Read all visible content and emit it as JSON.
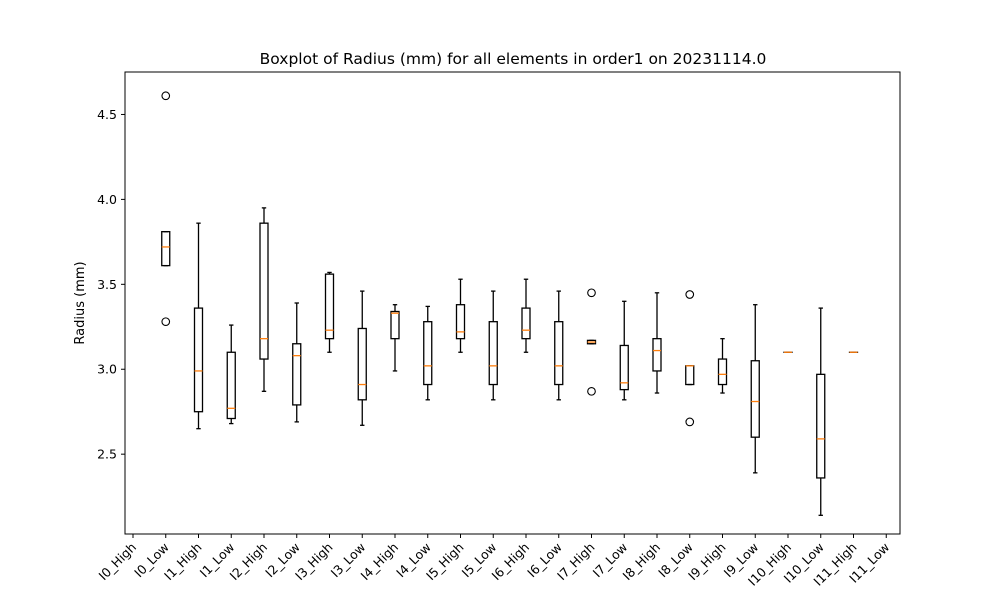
{
  "chart_data": {
    "type": "box",
    "title": "Boxplot of Radius (mm) for all elements in order1 on 20231114.0",
    "xlabel": "",
    "ylabel": "Radius (mm)",
    "ylim": [
      2.03,
      4.75
    ],
    "yticks": [
      2.5,
      3.0,
      3.5,
      4.0,
      4.5
    ],
    "ytick_labels": [
      "2.5",
      "3.0",
      "3.5",
      "4.0",
      "4.5"
    ],
    "grid": false,
    "categories": [
      "I0_High",
      "I0_Low",
      "I1_High",
      "I1_Low",
      "I2_High",
      "I2_Low",
      "I3_High",
      "I3_Low",
      "I4_High",
      "I4_Low",
      "I5_High",
      "I5_Low",
      "I6_High",
      "I6_Low",
      "I7_High",
      "I7_Low",
      "I8_High",
      "I8_Low",
      "I9_High",
      "I9_Low",
      "I10_High",
      "I10_Low",
      "I11_High",
      "I11_Low"
    ],
    "boxes": [
      null,
      {
        "whislo": 3.61,
        "q1": 3.61,
        "med": 3.72,
        "q3": 3.81,
        "whishi": 3.81,
        "fliers": [
          4.61,
          3.28
        ]
      },
      {
        "whislo": 2.65,
        "q1": 2.75,
        "med": 2.99,
        "q3": 3.36,
        "whishi": 3.86,
        "fliers": []
      },
      {
        "whislo": 2.68,
        "q1": 2.71,
        "med": 2.77,
        "q3": 3.1,
        "whishi": 3.26,
        "fliers": []
      },
      {
        "whislo": 2.87,
        "q1": 3.06,
        "med": 3.18,
        "q3": 3.86,
        "whishi": 3.95,
        "fliers": []
      },
      {
        "whislo": 2.69,
        "q1": 2.79,
        "med": 3.08,
        "q3": 3.15,
        "whishi": 3.39,
        "fliers": []
      },
      {
        "whislo": 3.1,
        "q1": 3.18,
        "med": 3.23,
        "q3": 3.56,
        "whishi": 3.57,
        "fliers": []
      },
      {
        "whislo": 2.67,
        "q1": 2.82,
        "med": 2.91,
        "q3": 3.24,
        "whishi": 3.46,
        "fliers": []
      },
      {
        "whislo": 2.99,
        "q1": 3.18,
        "med": 3.33,
        "q3": 3.34,
        "whishi": 3.38,
        "fliers": []
      },
      {
        "whislo": 2.82,
        "q1": 2.91,
        "med": 3.02,
        "q3": 3.28,
        "whishi": 3.37,
        "fliers": []
      },
      {
        "whislo": 3.1,
        "q1": 3.18,
        "med": 3.22,
        "q3": 3.38,
        "whishi": 3.53,
        "fliers": []
      },
      {
        "whislo": 2.82,
        "q1": 2.91,
        "med": 3.02,
        "q3": 3.28,
        "whishi": 3.46,
        "fliers": []
      },
      {
        "whislo": 3.1,
        "q1": 3.18,
        "med": 3.23,
        "q3": 3.36,
        "whishi": 3.53,
        "fliers": []
      },
      {
        "whislo": 2.82,
        "q1": 2.91,
        "med": 3.02,
        "q3": 3.28,
        "whishi": 3.46,
        "fliers": []
      },
      {
        "whislo": 3.15,
        "q1": 3.15,
        "med": 3.16,
        "q3": 3.17,
        "whishi": 3.17,
        "fliers": [
          3.45,
          2.87
        ]
      },
      {
        "whislo": 2.82,
        "q1": 2.88,
        "med": 2.92,
        "q3": 3.14,
        "whishi": 3.4,
        "fliers": []
      },
      {
        "whislo": 2.86,
        "q1": 2.99,
        "med": 3.11,
        "q3": 3.18,
        "whishi": 3.45,
        "fliers": []
      },
      {
        "whislo": 2.91,
        "q1": 2.91,
        "med": 3.02,
        "q3": 3.02,
        "whishi": 3.02,
        "fliers": [
          3.44,
          2.69
        ]
      },
      {
        "whislo": 2.86,
        "q1": 2.91,
        "med": 2.97,
        "q3": 3.06,
        "whishi": 3.18,
        "fliers": []
      },
      {
        "whislo": 2.39,
        "q1": 2.6,
        "med": 2.81,
        "q3": 3.05,
        "whishi": 3.38,
        "fliers": []
      },
      {
        "whislo": 3.1,
        "q1": 3.1,
        "med": 3.1,
        "q3": 3.1,
        "whishi": 3.1,
        "fliers": []
      },
      {
        "whislo": 2.14,
        "q1": 2.36,
        "med": 2.59,
        "q3": 2.97,
        "whishi": 3.36,
        "fliers": []
      },
      {
        "whislo": 3.1,
        "q1": 3.1,
        "med": 3.1,
        "q3": 3.1,
        "whishi": 3.1,
        "fliers": []
      },
      null
    ],
    "colors": {
      "box": "#000000",
      "median": "#ff7f0e",
      "flier": "#000000"
    }
  }
}
